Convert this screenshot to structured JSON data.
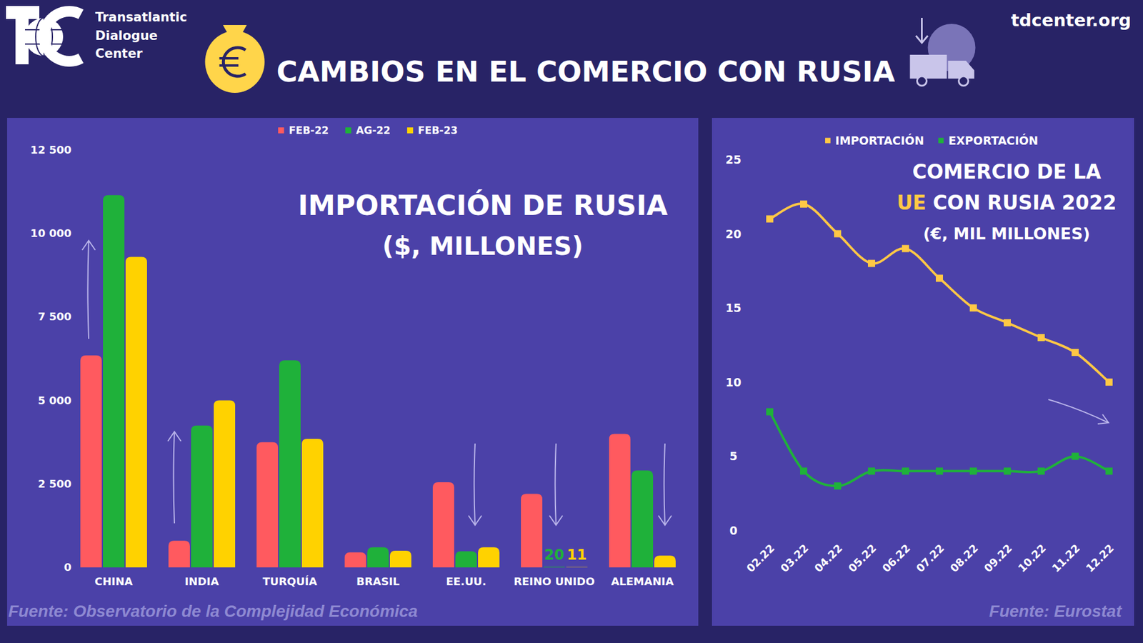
{
  "header": {
    "title": "CAMBIOS EN EL COMERCIO CON RUSIA",
    "org": [
      "Transatlantic",
      "Dialogue",
      "Center"
    ],
    "site": "tdcenter.org"
  },
  "chart_data": [
    {
      "type": "bar",
      "title": "IMPORTACIÓN DE RUSIA",
      "subtitle": "($, MILLONES)",
      "source": "Fuente: Observatorio de la Complejidad Económica",
      "categories": [
        "CHINA",
        "INDIA",
        "TURQUÍA",
        "BRASIL",
        "EE.UU.",
        "REINO UNIDO",
        "ALEMANIA"
      ],
      "series": [
        {
          "name": "FEB-22",
          "color": "#ff5a5f",
          "values": [
            6350,
            800,
            3750,
            450,
            2550,
            2200,
            4000
          ]
        },
        {
          "name": "AG-22",
          "color": "#1fb13a",
          "values": [
            11150,
            4250,
            6200,
            600,
            480,
            20,
            2900
          ]
        },
        {
          "name": "FEB-23",
          "color": "#ffd200",
          "values": [
            9300,
            5000,
            3850,
            500,
            600,
            11,
            350
          ]
        }
      ],
      "ylim": [
        0,
        12500
      ],
      "yticks": [
        0,
        {
          "value": 2500,
          "label": "2 500"
        },
        {
          "value": 5000,
          "label": "5 000"
        },
        {
          "value": 7500,
          "label": "7 500"
        },
        {
          "value": 10000,
          "label": "10 000"
        },
        {
          "value": 12500,
          "label": "12 500"
        }
      ],
      "grid": false,
      "legend": "top",
      "annotations": [
        {
          "text": "20",
          "category": "REINO UNIDO",
          "series": "AG-22"
        },
        {
          "text": "11",
          "category": "REINO UNIDO",
          "series": "FEB-23"
        }
      ]
    },
    {
      "type": "line",
      "title": [
        "COMERCIO DE LA",
        "UE",
        "CON RUSIA 2022"
      ],
      "subtitle": "(€, MIL MILLONES)",
      "source": "Fuente: Eurostat",
      "categories": [
        "02.22",
        "03.22",
        "04.22",
        "05.22",
        "06.22",
        "07.22",
        "08.22",
        "09.22",
        "10.22",
        "11.22",
        "12.22"
      ],
      "series": [
        {
          "name": "IMPORTACIÓN",
          "color": "#ffc845",
          "marker": "square",
          "values": [
            21,
            22,
            20,
            18,
            19,
            17,
            15,
            14,
            13,
            12,
            10
          ]
        },
        {
          "name": "EXPORTACIÓN",
          "color": "#1fb13a",
          "marker": "square",
          "values": [
            8,
            4,
            3,
            4,
            4,
            4,
            4,
            4,
            4,
            5,
            4
          ]
        }
      ],
      "ylim": [
        0,
        25
      ],
      "yticks": [
        0,
        5,
        10,
        15,
        20,
        25
      ],
      "grid": false,
      "legend": "top",
      "line_style": "smooth"
    }
  ]
}
